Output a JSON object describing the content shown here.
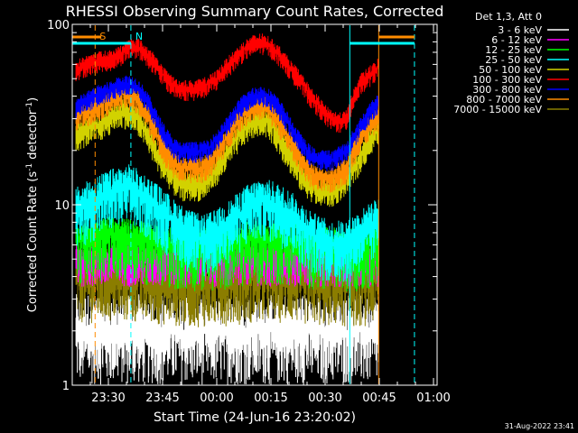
{
  "chart_data": {
    "type": "line",
    "title": "RHESSI Observing Summary Count Rates, Corrected",
    "xlabel": "Start Time (24-Jun-16 23:20:02)",
    "ylabel": "Corrected Count Rate (s",
    "ylabel_sup1": "-1",
    "ylabel_mid": " detector",
    "ylabel_sup2": "-1",
    "ylabel_end": ")",
    "y_scale": "log",
    "ylim": [
      1,
      100
    ],
    "xlim_minutes_from_start": [
      -0.03,
      100.97
    ],
    "x_ticks": [
      {
        "label": "23:30",
        "t": 9.97
      },
      {
        "label": "23:45",
        "t": 24.97
      },
      {
        "label": "00:00",
        "t": 39.97
      },
      {
        "label": "00:15",
        "t": 54.97
      },
      {
        "label": "00:30",
        "t": 69.97
      },
      {
        "label": "00:45",
        "t": 84.97
      },
      {
        "label": "01:00",
        "t": 99.97
      }
    ],
    "y_ticks": [
      {
        "label": "1",
        "v": 1
      },
      {
        "label": "10",
        "v": 10
      },
      {
        "label": "100",
        "v": 100
      }
    ],
    "legend_title": "Det 1,3, Att 0",
    "legend_position": "top-right outside",
    "series": [
      {
        "name": "3 - 6 keV",
        "color": "#ffffff"
      },
      {
        "name": "6 - 12 keV",
        "color": "#ff00ff"
      },
      {
        "name": "12 - 25 keV",
        "color": "#00ff00"
      },
      {
        "name": "25 - 50 keV",
        "color": "#00ffff"
      },
      {
        "name": "50 - 100 keV",
        "color": "#d2d200"
      },
      {
        "name": "100 - 300 keV",
        "color": "#ff0000"
      },
      {
        "name": "300 - 800 keV",
        "color": "#0000ff"
      },
      {
        "name": "800 - 7000 keV",
        "color": "#ff8c00"
      },
      {
        "name": "7000 - 15000 keV",
        "color": "#8b7d00"
      }
    ],
    "series_envelopes": [
      {
        "name": "100 - 300 keV",
        "t": [
          0,
          2,
          4,
          6,
          8,
          10,
          12,
          14,
          16,
          18,
          20,
          22,
          24,
          26,
          28,
          30,
          32,
          34,
          36,
          38,
          40,
          42,
          44,
          46,
          48,
          50,
          52,
          54,
          56,
          58,
          60,
          62,
          64,
          66,
          68,
          70,
          72,
          74,
          76,
          78,
          80,
          82,
          84,
          85
        ],
        "v": [
          55,
          58,
          60,
          62,
          64,
          64,
          66,
          70,
          75,
          76,
          70,
          64,
          56,
          50,
          46,
          44,
          44,
          44,
          45,
          47,
          50,
          56,
          62,
          68,
          74,
          78,
          80,
          78,
          72,
          66,
          58,
          52,
          46,
          40,
          36,
          32,
          30,
          29,
          30,
          40,
          48,
          52,
          56,
          60
        ]
      },
      {
        "name": "300 - 800 keV",
        "t": [
          0,
          2,
          4,
          6,
          8,
          10,
          12,
          14,
          16,
          18,
          20,
          22,
          24,
          26,
          28,
          30,
          32,
          34,
          36,
          38,
          40,
          42,
          44,
          46,
          48,
          50,
          52,
          54,
          56,
          58,
          60,
          62,
          64,
          66,
          68,
          70,
          72,
          74,
          76,
          78,
          80,
          82,
          84,
          85
        ],
        "v": [
          34,
          36,
          38,
          40,
          42,
          43,
          45,
          47,
          47,
          45,
          40,
          34,
          28,
          24,
          21,
          20,
          20,
          20,
          20,
          21,
          23,
          26,
          30,
          34,
          38,
          40,
          41,
          40,
          37,
          33,
          28,
          24,
          21,
          19,
          18,
          18,
          18,
          19,
          20,
          24,
          28,
          32,
          36,
          38
        ]
      },
      {
        "name": "800 - 7000 keV",
        "t": [
          0,
          2,
          4,
          6,
          8,
          10,
          12,
          14,
          16,
          18,
          20,
          22,
          24,
          26,
          28,
          30,
          32,
          34,
          36,
          38,
          40,
          42,
          44,
          46,
          48,
          50,
          52,
          54,
          56,
          58,
          60,
          62,
          64,
          66,
          68,
          70,
          72,
          74,
          76,
          78,
          80,
          82,
          84,
          85
        ],
        "v": [
          30,
          32,
          33,
          34,
          36,
          38,
          40,
          41,
          40,
          38,
          33,
          28,
          23,
          19,
          17,
          16,
          16,
          16,
          16,
          17,
          19,
          22,
          26,
          30,
          33,
          35,
          36,
          35,
          31,
          27,
          23,
          20,
          17,
          15,
          14,
          14,
          14,
          15,
          16,
          20,
          24,
          27,
          30,
          32
        ]
      },
      {
        "name": "50 - 100 keV",
        "t": [
          0,
          2,
          4,
          6,
          8,
          10,
          12,
          14,
          16,
          18,
          20,
          22,
          24,
          26,
          28,
          30,
          32,
          34,
          36,
          38,
          40,
          42,
          44,
          46,
          48,
          50,
          52,
          54,
          56,
          58,
          60,
          62,
          64,
          66,
          68,
          70,
          72,
          74,
          76,
          78,
          80,
          82,
          84,
          85
        ],
        "v": [
          24,
          25,
          26,
          27,
          28,
          30,
          32,
          33,
          32,
          30,
          26,
          22,
          18,
          16,
          14,
          13,
          13,
          13,
          13,
          14,
          16,
          18,
          21,
          24,
          27,
          29,
          30,
          29,
          26,
          22,
          19,
          16,
          14,
          13,
          12,
          12,
          12,
          13,
          14,
          16,
          19,
          22,
          25,
          27
        ]
      },
      {
        "name": "25 - 50 keV",
        "t": [
          0,
          4,
          8,
          12,
          16,
          20,
          24,
          28,
          32,
          36,
          40,
          44,
          48,
          52,
          56,
          60,
          64,
          68,
          72,
          76,
          80,
          84,
          85
        ],
        "v": [
          9,
          10,
          11,
          12,
          12.5,
          11,
          9.5,
          8,
          7,
          6.5,
          7,
          8,
          9.5,
          10.5,
          10,
          9,
          7.5,
          6.5,
          6,
          6.2,
          7,
          8,
          9
        ]
      },
      {
        "name": "12 - 25 keV",
        "t": [
          0,
          10,
          20,
          30,
          40,
          50,
          60,
          70,
          80,
          85
        ],
        "v": [
          6.5,
          7,
          6.5,
          6,
          6,
          6.5,
          6.5,
          6,
          6,
          6.5
        ]
      },
      {
        "name": "6 - 12 keV",
        "t": [
          0,
          10,
          20,
          30,
          40,
          50,
          60,
          70,
          80,
          85
        ],
        "v": [
          5,
          5,
          5,
          5,
          5,
          5,
          5,
          5,
          5,
          5
        ]
      },
      {
        "name": "7000 - 15000 keV",
        "t": [
          0,
          10,
          20,
          30,
          40,
          50,
          60,
          70,
          80,
          85
        ],
        "v": [
          4,
          4,
          4,
          3.8,
          3.8,
          4,
          4,
          3.8,
          3.8,
          4
        ]
      },
      {
        "name": "3 - 6 keV",
        "t": [
          0,
          10,
          20,
          30,
          40,
          50,
          60,
          70,
          80,
          85
        ],
        "v": [
          2,
          2,
          2,
          2,
          2,
          2,
          2,
          2,
          2,
          2
        ]
      }
    ],
    "markers": [
      {
        "label": "S",
        "color": "#ff8c00",
        "t": 6.3
      },
      {
        "label": "N",
        "color": "#00ffff",
        "t": 16.2
      }
    ],
    "vertical_lines": [
      {
        "t": 6.3,
        "color": "#ff8c00",
        "style": "dashed"
      },
      {
        "t": 16.2,
        "color": "#00ffff",
        "style": "dashed"
      },
      {
        "t": 76.8,
        "color": "#00ffff",
        "style": "solid"
      },
      {
        "t": 84.8,
        "color": "#ff8c00",
        "style": "solid"
      },
      {
        "t": 94.7,
        "color": "#00ffff",
        "style": "dashed"
      }
    ],
    "bars": [
      {
        "color": "#ff8c00",
        "t0": 0,
        "t1": 8
      },
      {
        "color": "#00ffff",
        "t0": 0,
        "t1": 16.2
      },
      {
        "color": "#00ffff",
        "t0": 76.8,
        "t1": 94.7
      },
      {
        "color": "#ff8c00",
        "t0": 84.8,
        "t1": 94.7
      }
    ],
    "footer_date": "31-Aug-2022 23:41"
  }
}
